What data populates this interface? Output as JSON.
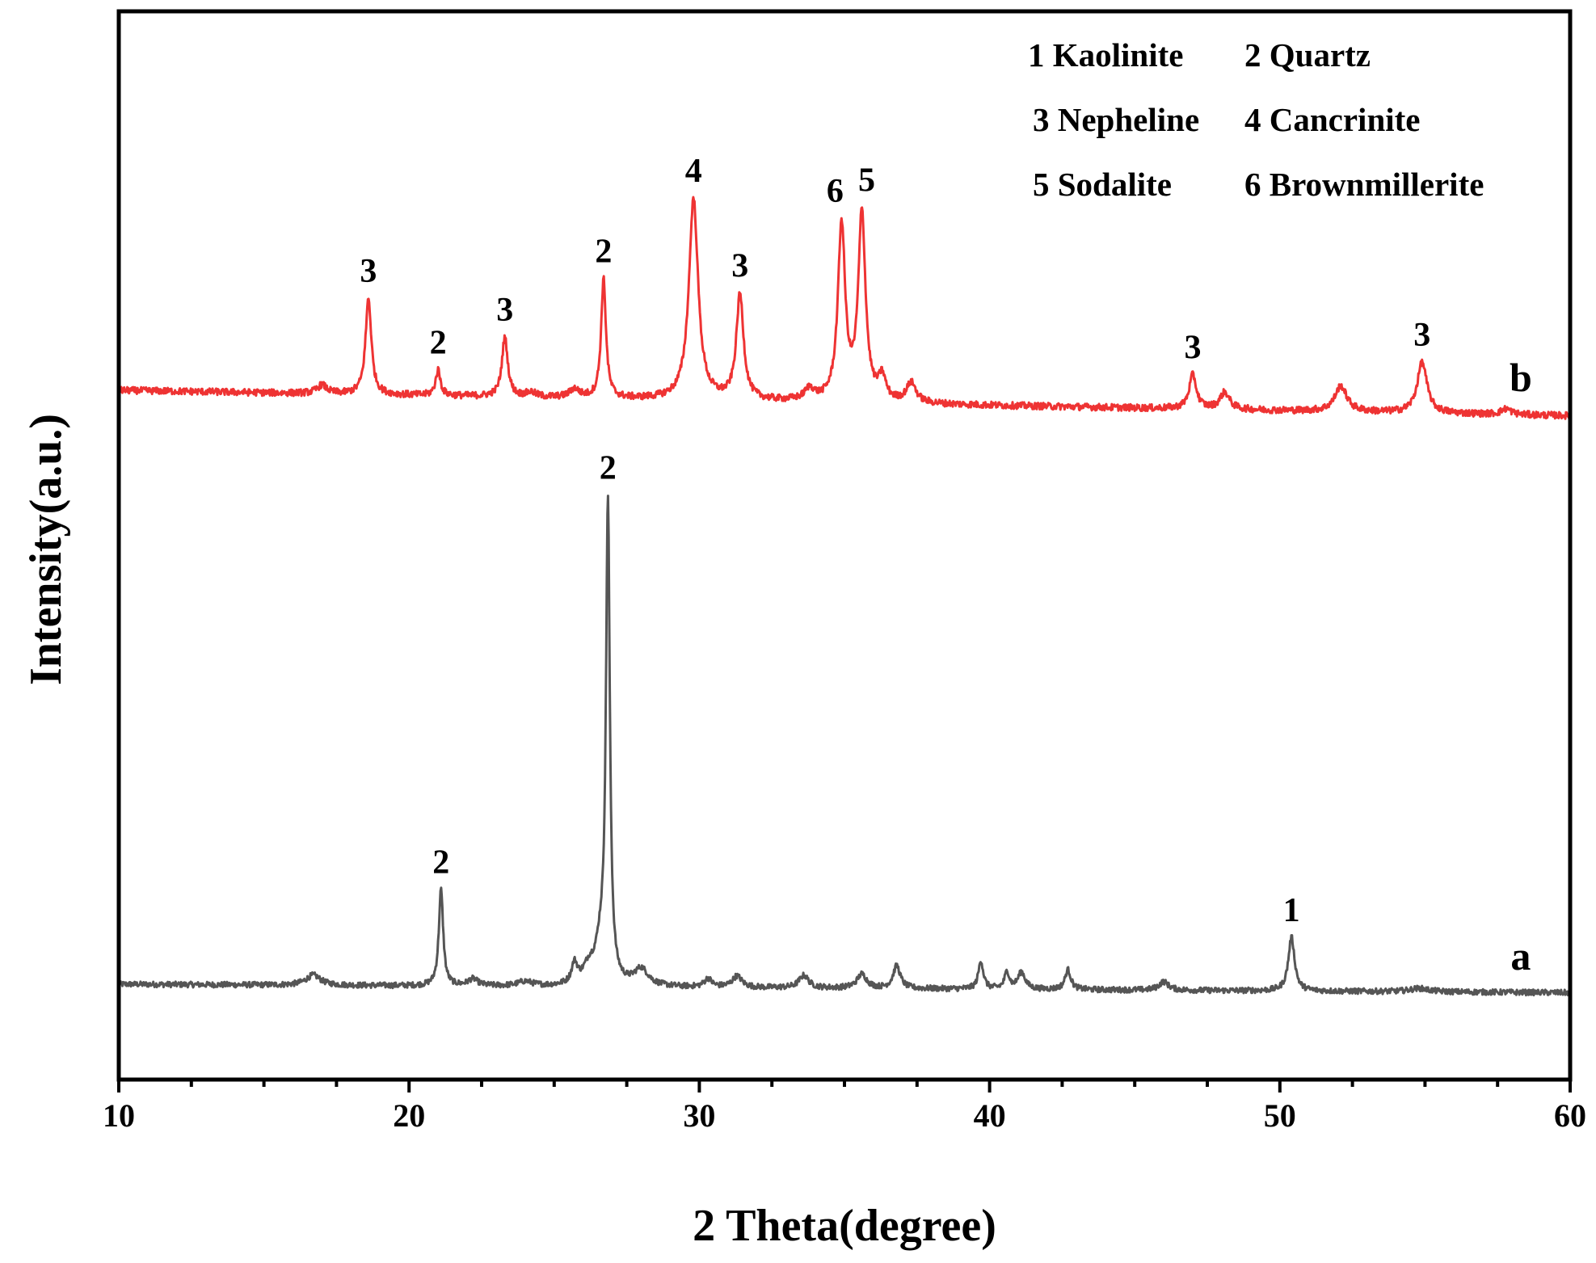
{
  "chart_data": {
    "type": "line",
    "xlabel": "2 Theta(degree)",
    "ylabel": "Intensity(a.u.)",
    "xlim": [
      10,
      60
    ],
    "xticks": [
      10,
      20,
      30,
      40,
      50,
      60
    ],
    "yticks_shown": false,
    "legend": {
      "placement": "top-right",
      "entries": [
        "1 Kaolinite",
        "2 Quartz",
        "3 Nepheline",
        "4 Cancrinite",
        "5 Sodalite",
        "6 Brownmillerite"
      ]
    },
    "series": [
      {
        "name": "a",
        "color": "#555555",
        "baseline_start": 0.0,
        "baseline_end": -0.15,
        "noise": 0.1,
        "peaks": [
          {
            "x": 16.7,
            "h": 0.18,
            "w": 0.3
          },
          {
            "x": 21.1,
            "h": 1.7,
            "w": 0.09
          },
          {
            "x": 22.2,
            "h": 0.12,
            "w": 0.2
          },
          {
            "x": 24.0,
            "h": 0.08,
            "w": 0.3
          },
          {
            "x": 25.7,
            "h": 0.35,
            "w": 0.12
          },
          {
            "x": 26.2,
            "h": 0.3,
            "w": 0.25
          },
          {
            "x": 26.6,
            "h": 0.6,
            "w": 0.2
          },
          {
            "x": 26.85,
            "h": 8.4,
            "w": 0.08
          },
          {
            "x": 28.0,
            "h": 0.3,
            "w": 0.3
          },
          {
            "x": 30.3,
            "h": 0.15,
            "w": 0.15
          },
          {
            "x": 31.3,
            "h": 0.2,
            "w": 0.2
          },
          {
            "x": 33.6,
            "h": 0.22,
            "w": 0.2
          },
          {
            "x": 35.6,
            "h": 0.25,
            "w": 0.2
          },
          {
            "x": 36.8,
            "h": 0.4,
            "w": 0.15
          },
          {
            "x": 39.7,
            "h": 0.5,
            "w": 0.1
          },
          {
            "x": 40.6,
            "h": 0.3,
            "w": 0.1
          },
          {
            "x": 41.1,
            "h": 0.3,
            "w": 0.15
          },
          {
            "x": 42.7,
            "h": 0.35,
            "w": 0.12
          },
          {
            "x": 46.0,
            "h": 0.15,
            "w": 0.2
          },
          {
            "x": 50.4,
            "h": 0.95,
            "w": 0.13
          },
          {
            "x": 54.8,
            "h": 0.06,
            "w": 0.4
          }
        ]
      },
      {
        "name": "b",
        "color": "#ee3333",
        "baseline_start": 10.5,
        "baseline_end": 10.05,
        "noise": 0.12,
        "peaks": [
          {
            "x": 17.0,
            "h": 0.15,
            "w": 0.2
          },
          {
            "x": 18.6,
            "h": 1.7,
            "w": 0.12
          },
          {
            "x": 21.0,
            "h": 0.45,
            "w": 0.1
          },
          {
            "x": 23.3,
            "h": 1.05,
            "w": 0.12
          },
          {
            "x": 24.2,
            "h": 0.08,
            "w": 0.2
          },
          {
            "x": 25.7,
            "h": 0.15,
            "w": 0.2
          },
          {
            "x": 26.7,
            "h": 2.1,
            "w": 0.1
          },
          {
            "x": 29.8,
            "h": 3.55,
            "w": 0.19
          },
          {
            "x": 31.4,
            "h": 1.85,
            "w": 0.15
          },
          {
            "x": 33.8,
            "h": 0.2,
            "w": 0.2
          },
          {
            "x": 34.9,
            "h": 3.1,
            "w": 0.15
          },
          {
            "x": 35.6,
            "h": 3.3,
            "w": 0.15
          },
          {
            "x": 36.3,
            "h": 0.4,
            "w": 0.15
          },
          {
            "x": 37.3,
            "h": 0.35,
            "w": 0.2
          },
          {
            "x": 47.0,
            "h": 0.6,
            "w": 0.15
          },
          {
            "x": 48.1,
            "h": 0.3,
            "w": 0.2
          },
          {
            "x": 52.1,
            "h": 0.45,
            "w": 0.25
          },
          {
            "x": 54.9,
            "h": 0.9,
            "w": 0.2
          },
          {
            "x": 57.8,
            "h": 0.1,
            "w": 0.2
          }
        ]
      }
    ],
    "annotations": [
      {
        "text": "3",
        "x": 18.6,
        "series": "b"
      },
      {
        "text": "2",
        "x": 21.0,
        "series": "b"
      },
      {
        "text": "3",
        "x": 23.3,
        "series": "b"
      },
      {
        "text": "2",
        "x": 26.7,
        "series": "b"
      },
      {
        "text": "4",
        "x": 29.8,
        "series": "b"
      },
      {
        "text": "3",
        "x": 31.4,
        "series": "b"
      },
      {
        "text": "6",
        "x": 34.9,
        "series": "b"
      },
      {
        "text": "5",
        "x": 35.6,
        "series": "b"
      },
      {
        "text": "3",
        "x": 47.0,
        "series": "b"
      },
      {
        "text": "3",
        "x": 54.9,
        "series": "b"
      },
      {
        "text": "2",
        "x": 26.85,
        "series": "a"
      },
      {
        "text": "2",
        "x": 21.1,
        "series": "a"
      },
      {
        "text": "1",
        "x": 50.4,
        "series": "a"
      }
    ],
    "series_labels": [
      {
        "text": "b",
        "x": 58.3,
        "series": "b"
      },
      {
        "text": "a",
        "x": 58.3,
        "series": "a"
      }
    ]
  }
}
